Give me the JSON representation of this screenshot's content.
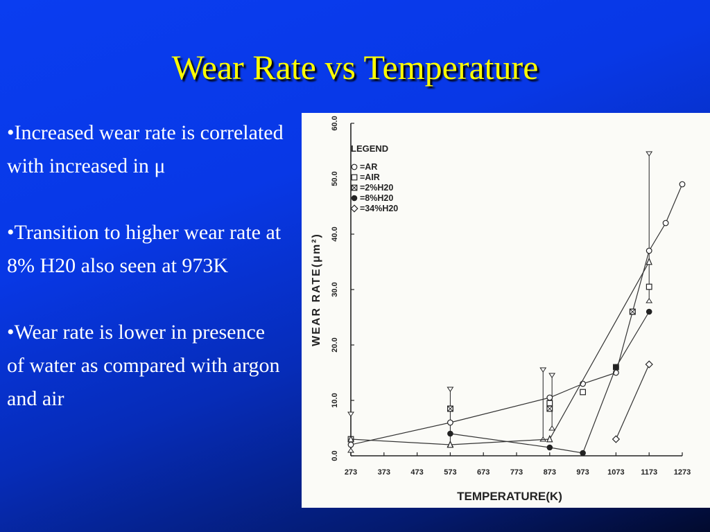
{
  "slide": {
    "title": "Wear Rate vs Temperature",
    "bullets": [
      "•Increased wear rate is correlated with increased in μ",
      "•Transition to higher wear rate at 8% H20 also seen at 973K",
      "•Wear rate is lower in presence of water as compared with argon and air"
    ]
  },
  "colors": {
    "title": "#ffff00",
    "text": "#ffffff",
    "background": "#0838e6"
  },
  "chart_data": {
    "type": "scatter",
    "xlabel": "TEMPERATURE(K)",
    "ylabel": "WEAR  RATE(μm²)",
    "xlim": [
      273,
      1273
    ],
    "ylim": [
      0,
      60
    ],
    "x_ticks": [
      "273",
      "373",
      "473",
      "573",
      "673",
      "773",
      "873",
      "973",
      "1073",
      "1173",
      "1273"
    ],
    "y_ticks": [
      "0.0",
      "10.0",
      "20.0",
      "30.0",
      "40.0",
      "50.0",
      "60.0"
    ],
    "legend_title": "LEGEND",
    "legend_position": "top-left",
    "series": [
      {
        "name": "=AR",
        "marker": "circle",
        "points": [
          [
            273,
            2
          ],
          [
            573,
            6
          ],
          [
            873,
            10.5
          ],
          [
            973,
            13
          ],
          [
            1073,
            15
          ],
          [
            1173,
            37
          ],
          [
            1223,
            42
          ],
          [
            1273,
            49
          ]
        ],
        "line": true
      },
      {
        "name": "=AIR",
        "marker": "square",
        "points": [
          [
            273,
            3
          ],
          [
            573,
            8.5
          ],
          [
            873,
            9.5
          ],
          [
            973,
            11.5
          ],
          [
            1073,
            16
          ],
          [
            1123,
            26
          ],
          [
            1173,
            30.5
          ]
        ]
      },
      {
        "name": "=2%H20",
        "marker": "crossbox",
        "points": [
          [
            573,
            8.5
          ],
          [
            873,
            8.5
          ],
          [
            1123,
            26
          ]
        ]
      },
      {
        "name": "=8%H20",
        "marker": "dot",
        "points": [
          [
            573,
            4
          ],
          [
            873,
            1.5
          ],
          [
            973,
            0.5
          ],
          [
            1073,
            16
          ],
          [
            1173,
            26
          ]
        ],
        "line": true
      },
      {
        "name": "=34%H20",
        "marker": "diamond",
        "points": [
          [
            1073,
            3
          ],
          [
            1173,
            16.5
          ]
        ],
        "line": true
      },
      {
        "name": "",
        "marker": "triangle",
        "points": [
          [
            273,
            3
          ],
          [
            573,
            2
          ],
          [
            873,
            3
          ],
          [
            1173,
            35
          ]
        ],
        "line": true
      }
    ],
    "error_bars": [
      {
        "x": 273,
        "low": 1,
        "high": 7.5
      },
      {
        "x": 573,
        "low": 2,
        "high": 12
      },
      {
        "x": 853,
        "low": 3,
        "high": 15.5
      },
      {
        "x": 880,
        "low": 5,
        "high": 14.5
      },
      {
        "x": 1173,
        "low": 28,
        "high": 54.5
      }
    ]
  }
}
